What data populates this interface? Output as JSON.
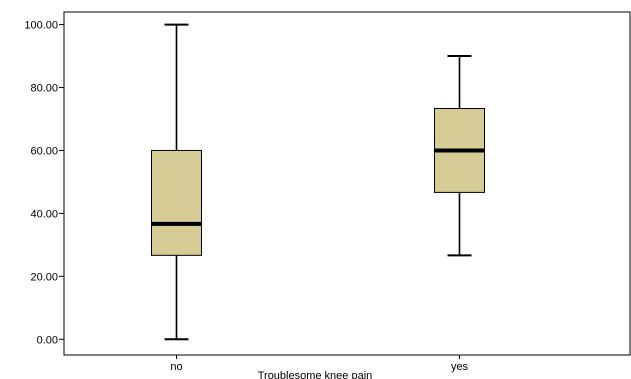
{
  "chart_data": {
    "type": "boxplot",
    "title": "",
    "xlabel": "Troublesome knee pain",
    "ylabel": "",
    "categories": [
      "no",
      "yes"
    ],
    "boxes": [
      {
        "category": "no",
        "min": 0.0,
        "q1": 26.67,
        "median": 36.67,
        "q3": 60.0,
        "max": 100.0
      },
      {
        "category": "yes",
        "min": 26.67,
        "q1": 46.67,
        "median": 60.0,
        "q3": 73.33,
        "max": 90.0
      }
    ],
    "ylim": [
      -5,
      104
    ],
    "y_ticks": [
      {
        "value": 0,
        "label": "0.00"
      },
      {
        "value": 20,
        "label": "20.00"
      },
      {
        "value": 40,
        "label": "40.00"
      },
      {
        "value": 60,
        "label": "60.00"
      },
      {
        "value": 80,
        "label": "80.00"
      },
      {
        "value": 100,
        "label": "100.00"
      }
    ],
    "grid": false,
    "colors": {
      "box_fill": "#d6cc95",
      "line": "#000000",
      "background": "#ffffff"
    }
  }
}
